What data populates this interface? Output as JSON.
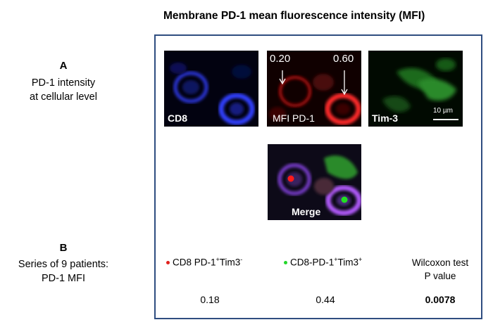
{
  "title": "Membrane PD-1 mean fluorescence intensity (MFI)",
  "section_a": {
    "letter": "A",
    "line1": "PD-1 intensity",
    "line2": "at cellular level"
  },
  "section_b": {
    "letter": "B",
    "line1": "Series of 9 patients:",
    "line2": "PD-1 MFI"
  },
  "panels": {
    "cd8": {
      "label": "CD8",
      "color": "#1e2cff"
    },
    "pd1": {
      "label": "MFI PD-1",
      "value_left": "0.20",
      "value_right": "0.60",
      "color": "#e0201c"
    },
    "tim3": {
      "label": "Tim-3",
      "scale_bar": "10 µm",
      "color": "#2fb83a"
    },
    "merge": {
      "label": "Merge"
    }
  },
  "table": {
    "col1": {
      "base": "CD8 PD-1",
      "sup1": "+",
      "mid": "Tim3",
      "sup2": "-",
      "dot_color": "#e0201c",
      "value": "0.18"
    },
    "col2": {
      "base": "CD8-PD-1",
      "sup1": "+",
      "mid": "Tim3",
      "sup2": "+",
      "dot_color": "#22d62a",
      "value": "0.44"
    },
    "col3": {
      "line1": "Wilcoxon test",
      "line2": "P value",
      "value": "0.0078"
    }
  }
}
